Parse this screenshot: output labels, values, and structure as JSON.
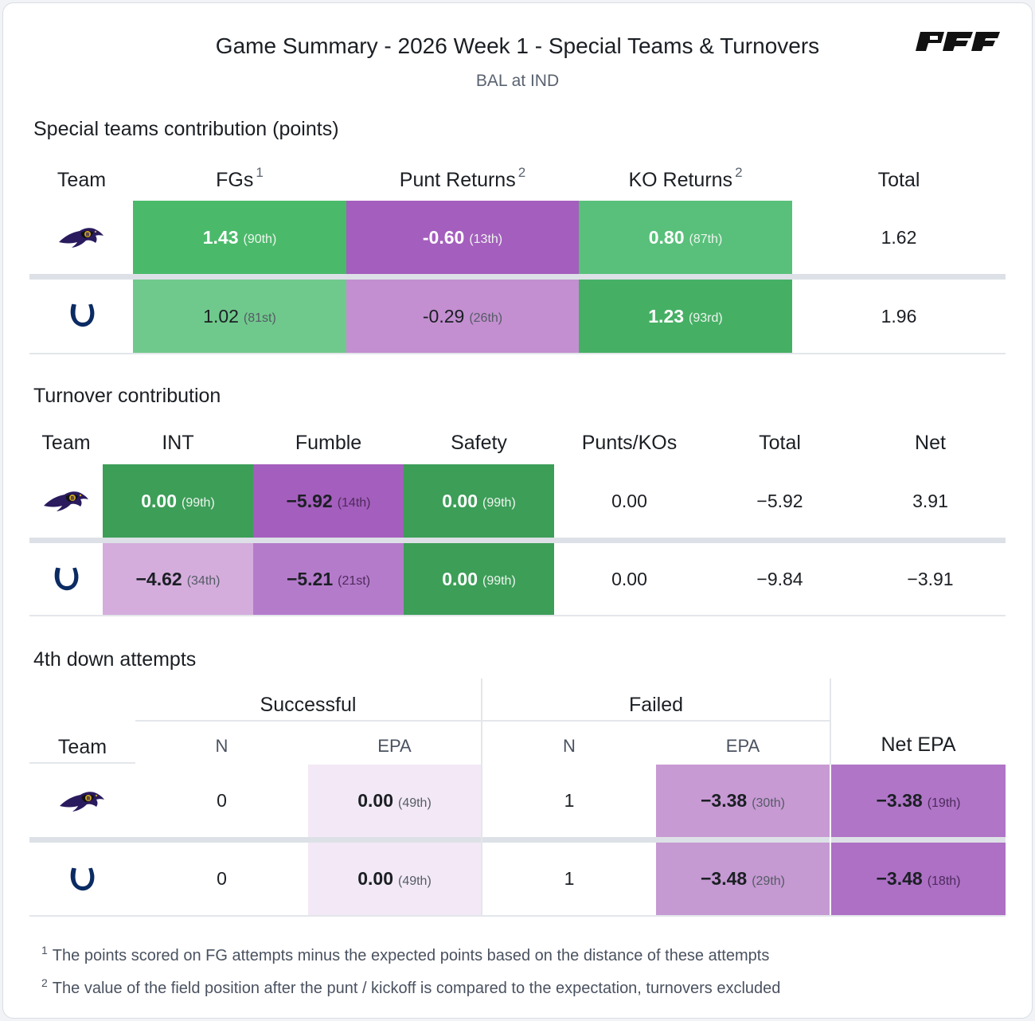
{
  "header": {
    "title": "Game Summary - 2026 Week 1 - Special Teams & Turnovers",
    "subtitle": "BAL at IND",
    "brand": "PFF"
  },
  "colors": {
    "green_dark": "#3d9e58",
    "green_mid": "#4aba6a",
    "green_light": "#70c98c",
    "purple_dark": "#a45ebd",
    "purple_mid": "#b57bcb",
    "purple_light": "#c38fd0",
    "purple_pale": "#d4addc",
    "purple_faint": "#f3e9f6"
  },
  "chart_data": [
    {
      "type": "table",
      "title": "Special teams contribution (points)",
      "columns": [
        "Team",
        "FGs",
        "Punt Returns",
        "KO Returns",
        "Total"
      ],
      "column_footnotes": {
        "FGs": "1",
        "Punt Returns": "2",
        "KO Returns": "2"
      },
      "rows": [
        {
          "team": "BAL",
          "fgs": {
            "value": "1.43",
            "rank": "(90th)"
          },
          "punt_returns": {
            "value": "-0.60",
            "rank": "(13th)"
          },
          "ko_returns": {
            "value": "0.80",
            "rank": "(87th)"
          },
          "total": "1.62"
        },
        {
          "team": "IND",
          "fgs": {
            "value": "1.02",
            "rank": "(81st)"
          },
          "punt_returns": {
            "value": "-0.29",
            "rank": "(26th)"
          },
          "ko_returns": {
            "value": "1.23",
            "rank": "(93rd)"
          },
          "total": "1.96"
        }
      ]
    },
    {
      "type": "table",
      "title": "Turnover contribution",
      "columns": [
        "Team",
        "INT",
        "Fumble",
        "Safety",
        "Punts/KOs",
        "Total",
        "Net"
      ],
      "rows": [
        {
          "team": "BAL",
          "int": {
            "value": "0.00",
            "rank": "(99th)"
          },
          "fumble": {
            "value": "−5.92",
            "rank": "(14th)"
          },
          "safety": {
            "value": "0.00",
            "rank": "(99th)"
          },
          "punts_kos": "0.00",
          "total": "−5.92",
          "net": "3.91"
        },
        {
          "team": "IND",
          "int": {
            "value": "−4.62",
            "rank": "(34th)"
          },
          "fumble": {
            "value": "−5.21",
            "rank": "(21st)"
          },
          "safety": {
            "value": "0.00",
            "rank": "(99th)"
          },
          "punts_kos": "0.00",
          "total": "−9.84",
          "net": "−3.91"
        }
      ]
    },
    {
      "type": "table",
      "title": "4th down attempts",
      "groups": [
        "Successful",
        "Failed"
      ],
      "columns": [
        "Team",
        "N",
        "EPA",
        "N",
        "EPA",
        "Net EPA"
      ],
      "rows": [
        {
          "team": "BAL",
          "successful_n": "0",
          "successful_epa": {
            "value": "0.00",
            "rank": "(49th)"
          },
          "failed_n": "1",
          "failed_epa": {
            "value": "−3.38",
            "rank": "(30th)"
          },
          "net_epa": {
            "value": "−3.38",
            "rank": "(19th)"
          }
        },
        {
          "team": "IND",
          "successful_n": "0",
          "successful_epa": {
            "value": "0.00",
            "rank": "(49th)"
          },
          "failed_n": "1",
          "failed_epa": {
            "value": "−3.48",
            "rank": "(29th)"
          },
          "net_epa": {
            "value": "−3.48",
            "rank": "(18th)"
          }
        }
      ]
    }
  ],
  "footnotes": [
    {
      "marker": "1",
      "text": "The points scored on FG attempts minus the expected points based on the distance of these attempts"
    },
    {
      "marker": "2",
      "text": "The value of the field position after the punt / kickoff is compared to the expectation, turnovers excluded"
    }
  ],
  "icons": {
    "bal": "ravens-logo-icon",
    "ind": "colts-horseshoe-icon"
  }
}
